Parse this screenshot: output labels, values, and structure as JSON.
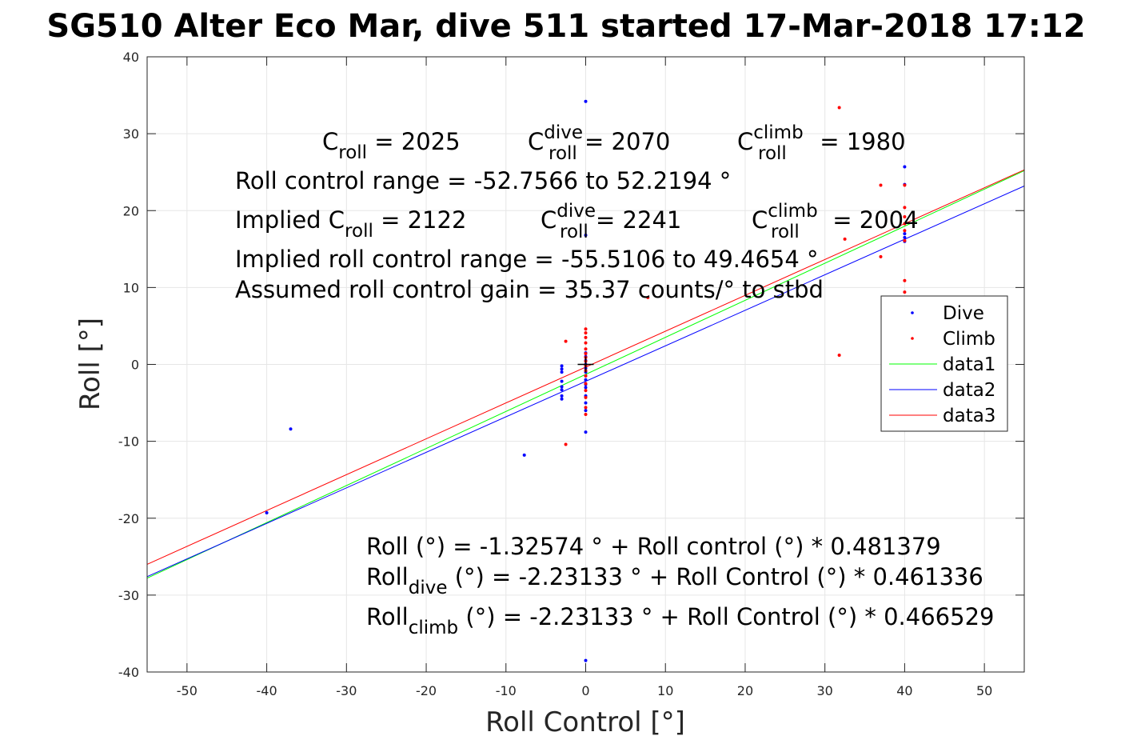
{
  "title": "SG510 Alter Eco Mar, dive 511 started 17-Mar-2018 17:12",
  "chart_data": {
    "type": "scatter",
    "title": "SG510 Alter Eco Mar, dive 511 started 17-Mar-2018 17:12",
    "xlabel": "Roll Control [°]",
    "ylabel": "Roll [°]",
    "xlim": [
      -55,
      55
    ],
    "ylim": [
      -40,
      40
    ],
    "xticks": [
      -50,
      -40,
      -30,
      -20,
      -10,
      0,
      10,
      20,
      30,
      40,
      50
    ],
    "yticks": [
      -40,
      -30,
      -20,
      -10,
      0,
      10,
      20,
      30,
      40
    ],
    "grid": true,
    "legend_position": "right",
    "colors": {
      "dive": "#0000ff",
      "climb": "#ff0000",
      "data1": "#00ff00",
      "data2": "#0000ff",
      "data3": "#ff0000",
      "grid": "#e6e6e6",
      "axes": "#262626"
    },
    "series": [
      {
        "name": "Dive",
        "mode": "markers",
        "points": [
          [
            -37,
            -8.4
          ],
          [
            -40,
            -19.3
          ],
          [
            -7.7,
            -11.8
          ],
          [
            -3,
            -0.2
          ],
          [
            -3,
            -0.6
          ],
          [
            -3,
            -1.0
          ],
          [
            -3,
            -2.2
          ],
          [
            -3,
            -2.9
          ],
          [
            -3,
            -3.3
          ],
          [
            -3,
            -4.1
          ],
          [
            -3,
            -4.5
          ],
          [
            0,
            34.2
          ],
          [
            0,
            16.8
          ],
          [
            0,
            1.5
          ],
          [
            0,
            1.0
          ],
          [
            0,
            0.5
          ],
          [
            0,
            0.0
          ],
          [
            0,
            -0.5
          ],
          [
            0,
            -1.0
          ],
          [
            0,
            -1.5
          ],
          [
            0,
            -2.0
          ],
          [
            0,
            -2.6
          ],
          [
            0,
            -3.0
          ],
          [
            0,
            -4.1
          ],
          [
            0,
            -5.0
          ],
          [
            0,
            -6.0
          ],
          [
            0,
            -8.8
          ],
          [
            0,
            -38.5
          ],
          [
            40,
            25.7
          ],
          [
            40,
            23.4
          ],
          [
            40,
            17.0
          ],
          [
            40,
            16.5
          ],
          [
            40,
            16.0
          ]
        ]
      },
      {
        "name": "Climb",
        "mode": "markers",
        "points": [
          [
            -2.5,
            3.0
          ],
          [
            -2.5,
            -10.4
          ],
          [
            0,
            4.6
          ],
          [
            0,
            4.1
          ],
          [
            0,
            3.5
          ],
          [
            0,
            2.8
          ],
          [
            0,
            2.0
          ],
          [
            0,
            1.4
          ],
          [
            0,
            0.9
          ],
          [
            0,
            0.4
          ],
          [
            0,
            -0.2
          ],
          [
            0,
            -0.8
          ],
          [
            0,
            -1.5
          ],
          [
            0,
            -2.5
          ],
          [
            0,
            -3.4
          ],
          [
            0,
            -4.3
          ],
          [
            0,
            -5.6
          ],
          [
            0,
            -6.5
          ],
          [
            7.8,
            8.7
          ],
          [
            31.8,
            33.4
          ],
          [
            31.8,
            1.2
          ],
          [
            32.5,
            16.3
          ],
          [
            37,
            23.3
          ],
          [
            37,
            14.0
          ],
          [
            40,
            23.3
          ],
          [
            40,
            20.4
          ],
          [
            40,
            19.2
          ],
          [
            40,
            18.3
          ],
          [
            40,
            17.4
          ],
          [
            40,
            16.1
          ],
          [
            40,
            10.9
          ],
          [
            40,
            9.4
          ]
        ]
      },
      {
        "name": "data1",
        "mode": "line",
        "points": [
          [
            -55,
            -27.8
          ],
          [
            55,
            25.2
          ]
        ]
      },
      {
        "name": "data2",
        "mode": "line",
        "points": [
          [
            -55,
            -27.6
          ],
          [
            55,
            23.2
          ]
        ]
      },
      {
        "name": "data3",
        "mode": "line",
        "points": [
          [
            -55,
            -26.0
          ],
          [
            55,
            25.3
          ]
        ]
      }
    ],
    "marker_plus": [
      0,
      0
    ]
  },
  "annotations": {
    "c_roll": {
      "base": "C",
      "sub": "roll",
      "value": " = 2025"
    },
    "c_roll_dive": {
      "base": "C",
      "sup": "dive",
      "sub": "roll",
      "value": " = 2070"
    },
    "c_roll_climb": {
      "base": "C",
      "sup": "climb",
      "sub": "roll",
      "value": " = 1980"
    },
    "range": "Roll control range = -52.7566 to 52.2194 °",
    "implied_c_roll": {
      "prefix": "Implied C",
      "sub": "roll",
      "value": " = 2122"
    },
    "implied_c_dive": {
      "base": "C",
      "sup": "dive",
      "sub": "roll",
      "value": " = 2241"
    },
    "implied_c_climb": {
      "base": "C",
      "sup": "climb",
      "sub": "roll",
      "value": " = 2004"
    },
    "implied_range": "Implied roll control range = -55.5106 to 49.4654 °",
    "gain": "Assumed roll control gain = 35.37 counts/° to stbd",
    "fit_all": "Roll (°) = -1.32574 ° + Roll control (°) * 0.481379",
    "fit_dive": {
      "base": "Roll",
      "sub": "dive",
      "rest": " (°) = -2.23133 ° + Roll Control (°) * 0.461336"
    },
    "fit_climb": {
      "base": "Roll",
      "sub": "climb",
      "rest": " (°) = -2.23133 ° + Roll Control (°) * 0.466529"
    }
  }
}
